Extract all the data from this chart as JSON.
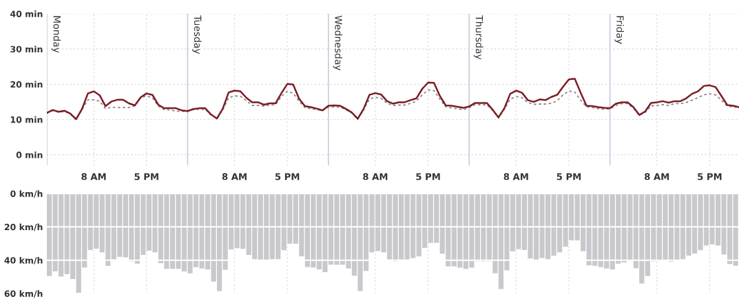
{
  "chart_data": [
    {
      "type": "line",
      "grid": true,
      "ylim": [
        -3,
        40
      ],
      "categories": [
        null,
        null,
        null,
        null,
        null,
        null,
        null,
        null,
        "8 AM",
        null,
        null,
        null,
        null,
        null,
        null,
        null,
        null,
        "5 PM",
        null,
        null,
        null,
        null,
        null,
        null,
        null,
        null,
        null,
        null,
        null,
        null,
        null,
        null,
        "8 AM",
        null,
        null,
        null,
        null,
        null,
        null,
        null,
        null,
        "5 PM",
        null,
        null,
        null,
        null,
        null,
        null,
        null,
        null,
        null,
        null,
        null,
        null,
        null,
        null,
        "8 AM",
        null,
        null,
        null,
        null,
        null,
        null,
        null,
        null,
        "5 PM",
        null,
        null,
        null,
        null,
        null,
        null,
        null,
        null,
        null,
        null,
        null,
        null,
        null,
        null,
        "8 AM",
        null,
        null,
        null,
        null,
        null,
        null,
        null,
        null,
        "5 PM",
        null,
        null,
        null,
        null,
        null,
        null,
        null,
        null,
        null,
        null,
        null,
        null,
        null,
        null,
        "8 AM",
        null,
        null,
        null,
        null,
        null,
        null,
        null,
        null,
        "5 PM",
        null,
        null,
        null,
        null,
        null
      ],
      "yticks": [
        {
          "value": 0,
          "label": "0 min"
        },
        {
          "value": 10,
          "label": "10 min"
        },
        {
          "value": 20,
          "label": "20 min"
        },
        {
          "value": 30,
          "label": "30 min"
        },
        {
          "value": 40,
          "label": "40 min"
        }
      ],
      "series": [
        {
          "color": "#7b1c24",
          "line_style": "solid",
          "values": [
            11.9,
            12.7,
            12.2,
            12.5,
            11.7,
            10.1,
            13.0,
            17.4,
            18.0,
            16.9,
            13.8,
            15.1,
            15.6,
            15.6,
            14.6,
            14.0,
            16.3,
            17.4,
            17.0,
            14.2,
            13.2,
            13.2,
            13.2,
            12.6,
            12.4,
            13.0,
            13.2,
            13.2,
            11.4,
            10.3,
            13.1,
            17.7,
            18.2,
            18.0,
            16.2,
            14.9,
            14.9,
            14.2,
            14.6,
            14.6,
            17.5,
            20.1,
            19.9,
            15.9,
            13.8,
            13.5,
            13.1,
            12.6,
            13.9,
            14.0,
            13.9,
            13.0,
            12.0,
            10.2,
            13.0,
            17.0,
            17.5,
            17.1,
            15.2,
            14.5,
            14.9,
            14.9,
            15.5,
            16.0,
            18.7,
            20.5,
            20.4,
            16.7,
            14.0,
            13.9,
            13.6,
            13.3,
            13.7,
            14.7,
            14.7,
            14.7,
            12.8,
            10.6,
            13.2,
            17.3,
            18.2,
            17.6,
            15.5,
            15.0,
            15.7,
            15.5,
            16.4,
            17.0,
            19.3,
            21.4,
            21.6,
            17.6,
            13.9,
            13.8,
            13.5,
            13.3,
            13.2,
            14.5,
            14.9,
            14.9,
            13.5,
            11.3,
            12.3,
            14.7,
            14.9,
            15.2,
            14.8,
            15.2,
            15.2,
            16.0,
            17.3,
            18.0,
            19.5,
            19.7,
            19.2,
            16.7,
            14.1,
            13.9,
            13.5
          ]
        },
        {
          "color": "#8a8a8a",
          "line_style": "dashed",
          "values": [
            11.8,
            12.5,
            12.1,
            12.3,
            11.6,
            10.0,
            12.8,
            15.6,
            15.6,
            15.2,
            13.1,
            13.5,
            13.4,
            13.4,
            13.4,
            13.9,
            16.2,
            16.7,
            16.2,
            13.8,
            12.8,
            12.7,
            12.4,
            12.3,
            12.3,
            12.8,
            12.9,
            12.9,
            11.3,
            10.2,
            12.8,
            16.2,
            16.7,
            16.6,
            15.4,
            14.0,
            14.0,
            13.8,
            14.1,
            14.2,
            16.6,
            18.0,
            17.5,
            15.2,
            13.4,
            13.1,
            12.8,
            12.6,
            13.5,
            13.6,
            13.5,
            12.8,
            11.8,
            10.1,
            12.7,
            15.8,
            16.3,
            16.0,
            14.6,
            14.0,
            14.1,
            14.1,
            14.6,
            15.2,
            17.0,
            18.4,
            18.2,
            15.8,
            13.6,
            13.3,
            13.0,
            12.8,
            13.4,
            14.2,
            14.2,
            14.2,
            12.6,
            10.5,
            12.9,
            15.8,
            16.5,
            16.2,
            14.8,
            14.3,
            14.4,
            14.4,
            14.6,
            15.3,
            17.0,
            18.1,
            17.8,
            15.5,
            13.6,
            13.4,
            13.1,
            12.9,
            13.0,
            14.0,
            14.5,
            14.5,
            13.2,
            11.2,
            12.0,
            13.9,
            14.0,
            14.2,
            14.0,
            14.5,
            14.5,
            14.8,
            15.5,
            16.2,
            17.0,
            17.3,
            17.0,
            15.5,
            13.8,
            13.6,
            13.4
          ]
        }
      ],
      "annotations": [
        "Monday",
        "Tuesday",
        "Wednesday",
        "Thursday",
        "Friday"
      ]
    },
    {
      "type": "bar",
      "grid": true,
      "tick_labels": "y",
      "ylim": [
        60,
        0
      ],
      "yticks": [
        {
          "value": 0,
          "label": "0 km/h"
        },
        {
          "value": 20,
          "label": "20 km/h"
        },
        {
          "value": 40,
          "label": "40 km/h"
        },
        {
          "value": 60,
          "label": "60 km/h"
        }
      ],
      "categories": [
        null,
        null,
        null,
        null,
        null,
        null,
        null,
        null,
        null,
        null,
        null,
        null,
        null,
        null,
        null,
        null,
        null,
        null,
        null,
        null,
        null,
        null,
        null,
        null,
        null,
        null,
        null,
        null,
        null,
        null,
        null,
        null,
        null,
        null,
        null,
        null,
        null,
        null,
        null,
        null,
        null,
        null,
        null,
        null,
        null,
        null,
        null,
        null,
        null,
        null,
        null,
        null,
        null,
        null,
        null,
        null,
        null,
        null,
        null,
        null,
        null,
        null,
        null,
        null,
        null,
        null,
        null,
        null,
        null,
        null,
        null,
        null,
        null,
        null,
        null,
        null,
        null,
        null,
        null,
        null,
        null,
        null,
        null,
        null,
        null,
        null,
        null,
        null,
        null,
        null,
        null,
        null,
        null,
        null,
        null,
        null,
        null,
        null,
        null,
        null,
        null,
        null,
        null,
        null,
        null,
        null,
        null,
        null,
        null,
        null,
        null,
        null,
        null,
        null,
        null,
        null,
        null,
        null
      ],
      "color": "#c9c8cc",
      "values": [
        49.5,
        46.7,
        49.8,
        48.4,
        51.3,
        60,
        44.4,
        33.9,
        33.1,
        35.3,
        43.4,
        39.5,
        38,
        38.3,
        40.7,
        42.1,
        36.8,
        34.3,
        35.3,
        41.8,
        45.2,
        45.2,
        45.2,
        46.8,
        47.9,
        44.2,
        45,
        45.6,
        52.9,
        58.6,
        45.8,
        33.5,
        32.8,
        33.2,
        36.9,
        39.4,
        40,
        40,
        39.4,
        39.4,
        34,
        30.1,
        30.1,
        37.7,
        44.1,
        44.4,
        45.5,
        47.2,
        42.7,
        42.7,
        42.7,
        45,
        49.3,
        58.6,
        46.4,
        35.3,
        34.5,
        35.3,
        39.6,
        40.7,
        39.6,
        39.6,
        38.7,
        37.7,
        32.6,
        29.6,
        29.6,
        36.1,
        43.7,
        43.7,
        44.5,
        45.2,
        44.5,
        40.7,
        40.7,
        40.7,
        47.9,
        57.3,
        46.1,
        34.7,
        33.4,
        33.9,
        39,
        40,
        38.7,
        39.4,
        37.3,
        35.3,
        31.9,
        28.1,
        28.1,
        34.6,
        43.1,
        43.4,
        44.2,
        45,
        45.6,
        42.1,
        41.3,
        40.4,
        44.8,
        54,
        49.5,
        40.7,
        40.4,
        40.4,
        40.9,
        40,
        39.4,
        37.3,
        36,
        34,
        31.2,
        30.5,
        31.2,
        36.6,
        42.3,
        43.4
      ]
    }
  ]
}
